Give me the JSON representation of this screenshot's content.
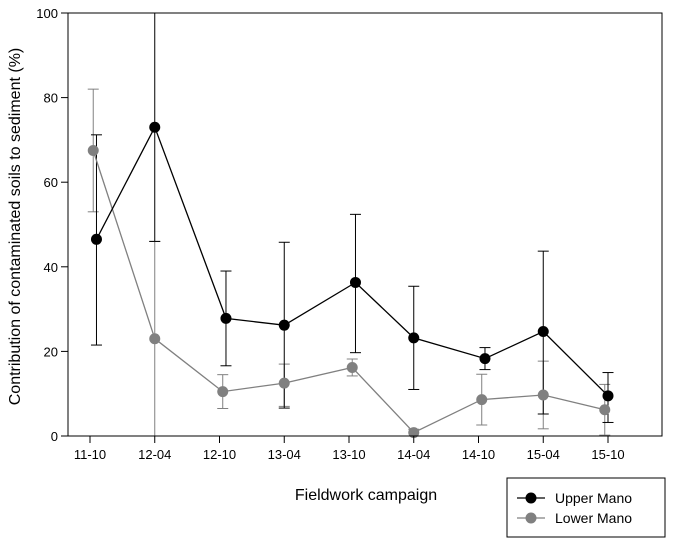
{
  "chart_data": {
    "type": "line",
    "title": "",
    "xlabel": "Fieldwork campaign",
    "ylabel": "Contribution of contaminated soils to sediment (%)",
    "ylim": [
      0,
      100
    ],
    "yticks": [
      0,
      20,
      40,
      60,
      80,
      100
    ],
    "categories": [
      "11-10",
      "12-04",
      "12-10",
      "13-04",
      "13-10",
      "14-04",
      "14-10",
      "15-04",
      "15-10"
    ],
    "grid": false,
    "legend_position": "bottom-right",
    "series": [
      {
        "name": "Upper Mano",
        "color": "#000000",
        "x": [
          0.1,
          1.0,
          2.1,
          3.0,
          4.1,
          5.0,
          6.1,
          7.0,
          8.0
        ],
        "values": [
          46.5,
          73,
          27.8,
          26.2,
          36.3,
          23.2,
          18.3,
          24.7,
          9.5
        ],
        "err_low": [
          25,
          27,
          11.2,
          19.6,
          16.6,
          12.2,
          2.6,
          19.5,
          6.3
        ],
        "err_high": [
          24.7,
          27,
          11.2,
          19.6,
          16.1,
          12.2,
          2.6,
          19.0,
          5.5
        ]
      },
      {
        "name": "Lower Mano",
        "color": "#808080",
        "x": [
          0.05,
          1.0,
          2.05,
          3.0,
          4.05,
          5.0,
          6.05,
          7.0,
          7.95
        ],
        "values": [
          67.5,
          23,
          10.5,
          12.5,
          16.2,
          0.8,
          8.6,
          9.7,
          6.2
        ],
        "err_low": [
          14.5,
          23,
          4.0,
          5.5,
          2.0,
          0.8,
          6.0,
          8.0,
          6.0
        ],
        "err_high": [
          14.5,
          23,
          4.0,
          4.5,
          2.0,
          0.8,
          6.0,
          8.0,
          6.0
        ]
      }
    ]
  }
}
